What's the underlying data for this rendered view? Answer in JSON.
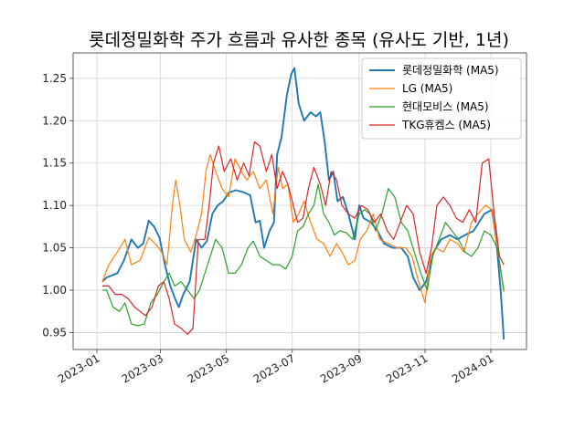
{
  "chart_data": {
    "type": "line",
    "title": "롯데정밀화학 주가 흐름과 유사한 종목 (유사도 기반, 1년)",
    "xlabel": "",
    "ylabel": "",
    "x_range": [
      "2022-12-10",
      "2024-02-03"
    ],
    "ylim": [
      0.93,
      1.28
    ],
    "grid": true,
    "legend_position": "top-right",
    "x_ticks": [
      "2023-01",
      "2023-03",
      "2023-05",
      "2023-07",
      "2023-09",
      "2023-11",
      "2024-01"
    ],
    "y_ticks": [
      "0.95",
      "1.00",
      "1.05",
      "1.10",
      "1.15",
      "1.20",
      "1.25"
    ],
    "series": [
      {
        "name": "롯데정밀화학 (MA5)",
        "color": "#1f77b4",
        "points": [
          [
            "2023-01-06",
            1.01
          ],
          [
            "2023-01-10",
            1.015
          ],
          [
            "2023-01-20",
            1.02
          ],
          [
            "2023-01-26",
            1.035
          ],
          [
            "2023-02-02",
            1.06
          ],
          [
            "2023-02-08",
            1.05
          ],
          [
            "2023-02-13",
            1.055
          ],
          [
            "2023-02-18",
            1.082
          ],
          [
            "2023-02-23",
            1.075
          ],
          [
            "2023-02-28",
            1.062
          ],
          [
            "2023-03-05",
            1.03
          ],
          [
            "2023-03-10",
            1.005
          ],
          [
            "2023-03-15",
            0.988
          ],
          [
            "2023-03-18",
            0.98
          ],
          [
            "2023-03-22",
            0.995
          ],
          [
            "2023-03-28",
            1.01
          ],
          [
            "2023-04-03",
            1.06
          ],
          [
            "2023-04-08",
            1.05
          ],
          [
            "2023-04-13",
            1.058
          ],
          [
            "2023-04-18",
            1.09
          ],
          [
            "2023-04-23",
            1.1
          ],
          [
            "2023-04-28",
            1.105
          ],
          [
            "2023-05-03",
            1.115
          ],
          [
            "2023-05-10",
            1.118
          ],
          [
            "2023-05-18",
            1.115
          ],
          [
            "2023-05-23",
            1.112
          ],
          [
            "2023-05-28",
            1.08
          ],
          [
            "2023-06-01",
            1.082
          ],
          [
            "2023-06-05",
            1.05
          ],
          [
            "2023-06-10",
            1.07
          ],
          [
            "2023-06-14",
            1.08
          ],
          [
            "2023-06-17",
            1.16
          ],
          [
            "2023-06-21",
            1.18
          ],
          [
            "2023-06-26",
            1.23
          ],
          [
            "2023-06-30",
            1.255
          ],
          [
            "2023-07-03",
            1.262
          ],
          [
            "2023-07-07",
            1.22
          ],
          [
            "2023-07-12",
            1.2
          ],
          [
            "2023-07-18",
            1.21
          ],
          [
            "2023-07-23",
            1.205
          ],
          [
            "2023-07-27",
            1.21
          ],
          [
            "2023-07-31",
            1.175
          ],
          [
            "2023-08-04",
            1.13
          ],
          [
            "2023-08-08",
            1.14
          ],
          [
            "2023-08-12",
            1.105
          ],
          [
            "2023-08-17",
            1.11
          ],
          [
            "2023-08-22",
            1.09
          ],
          [
            "2023-08-28",
            1.06
          ],
          [
            "2023-09-01",
            1.1
          ],
          [
            "2023-09-05",
            1.085
          ],
          [
            "2023-09-12",
            1.08
          ],
          [
            "2023-09-18",
            1.07
          ],
          [
            "2023-09-24",
            1.055
          ],
          [
            "2023-10-02",
            1.05
          ],
          [
            "2023-10-10",
            1.05
          ],
          [
            "2023-10-16",
            1.04
          ],
          [
            "2023-10-21",
            1.015
          ],
          [
            "2023-10-27",
            1.0
          ],
          [
            "2023-11-02",
            1.01
          ],
          [
            "2023-11-09",
            1.045
          ],
          [
            "2023-11-16",
            1.06
          ],
          [
            "2023-11-24",
            1.065
          ],
          [
            "2023-12-01",
            1.06
          ],
          [
            "2023-12-08",
            1.065
          ],
          [
            "2023-12-16",
            1.07
          ],
          [
            "2023-12-26",
            1.09
          ],
          [
            "2024-01-02",
            1.095
          ],
          [
            "2024-01-06",
            1.06
          ],
          [
            "2024-01-10",
            1.0
          ],
          [
            "2024-01-13",
            0.942
          ]
        ]
      },
      {
        "name": "LG (MA5)",
        "color": "#ff7f0e",
        "points": [
          [
            "2023-01-06",
            1.01
          ],
          [
            "2023-01-12",
            1.03
          ],
          [
            "2023-01-20",
            1.045
          ],
          [
            "2023-01-27",
            1.06
          ],
          [
            "2023-02-02",
            1.03
          ],
          [
            "2023-02-10",
            1.035
          ],
          [
            "2023-02-18",
            1.062
          ],
          [
            "2023-02-24",
            1.055
          ],
          [
            "2023-03-02",
            1.045
          ],
          [
            "2023-03-07",
            1.03
          ],
          [
            "2023-03-12",
            1.1
          ],
          [
            "2023-03-15",
            1.13
          ],
          [
            "2023-03-19",
            1.1
          ],
          [
            "2023-03-23",
            1.06
          ],
          [
            "2023-03-29",
            1.045
          ],
          [
            "2023-04-03",
            1.065
          ],
          [
            "2023-04-08",
            1.09
          ],
          [
            "2023-04-12",
            1.14
          ],
          [
            "2023-04-16",
            1.16
          ],
          [
            "2023-04-21",
            1.14
          ],
          [
            "2023-04-27",
            1.12
          ],
          [
            "2023-05-03",
            1.11
          ],
          [
            "2023-05-09",
            1.155
          ],
          [
            "2023-05-15",
            1.14
          ],
          [
            "2023-05-20",
            1.13
          ],
          [
            "2023-05-26",
            1.14
          ],
          [
            "2023-06-01",
            1.12
          ],
          [
            "2023-06-07",
            1.13
          ],
          [
            "2023-06-13",
            1.09
          ],
          [
            "2023-06-18",
            1.145
          ],
          [
            "2023-06-22",
            1.12
          ],
          [
            "2023-06-27",
            1.125
          ],
          [
            "2023-07-02",
            1.08
          ],
          [
            "2023-07-07",
            1.09
          ],
          [
            "2023-07-12",
            1.105
          ],
          [
            "2023-07-18",
            1.08
          ],
          [
            "2023-07-24",
            1.06
          ],
          [
            "2023-07-30",
            1.055
          ],
          [
            "2023-08-05",
            1.04
          ],
          [
            "2023-08-11",
            1.055
          ],
          [
            "2023-08-16",
            1.045
          ],
          [
            "2023-08-22",
            1.03
          ],
          [
            "2023-08-28",
            1.035
          ],
          [
            "2023-09-02",
            1.06
          ],
          [
            "2023-09-08",
            1.07
          ],
          [
            "2023-09-14",
            1.09
          ],
          [
            "2023-09-20",
            1.06
          ],
          [
            "2023-09-28",
            1.055
          ],
          [
            "2023-10-06",
            1.05
          ],
          [
            "2023-10-14",
            1.05
          ],
          [
            "2023-10-20",
            1.04
          ],
          [
            "2023-10-26",
            1.01
          ],
          [
            "2023-11-01",
            0.985
          ],
          [
            "2023-11-06",
            1.04
          ],
          [
            "2023-11-11",
            1.05
          ],
          [
            "2023-11-18",
            1.045
          ],
          [
            "2023-11-24",
            1.06
          ],
          [
            "2023-12-01",
            1.055
          ],
          [
            "2023-12-07",
            1.045
          ],
          [
            "2023-12-14",
            1.08
          ],
          [
            "2023-12-20",
            1.09
          ],
          [
            "2023-12-27",
            1.1
          ],
          [
            "2024-01-02",
            1.095
          ],
          [
            "2024-01-08",
            1.04
          ],
          [
            "2024-01-13",
            0.998
          ]
        ]
      },
      {
        "name": "현대모비스 (MA5)",
        "color": "#2ca02c",
        "points": [
          [
            "2023-01-06",
            1.0
          ],
          [
            "2023-01-10",
            1.0
          ],
          [
            "2023-01-16",
            0.98
          ],
          [
            "2023-01-22",
            0.975
          ],
          [
            "2023-01-27",
            0.985
          ],
          [
            "2023-02-02",
            0.96
          ],
          [
            "2023-02-08",
            0.958
          ],
          [
            "2023-02-14",
            0.96
          ],
          [
            "2023-02-20",
            0.985
          ],
          [
            "2023-02-26",
            0.995
          ],
          [
            "2023-03-04",
            1.01
          ],
          [
            "2023-03-09",
            1.02
          ],
          [
            "2023-03-14",
            1.005
          ],
          [
            "2023-03-20",
            1.01
          ],
          [
            "2023-03-26",
            1.0
          ],
          [
            "2023-04-01",
            0.99
          ],
          [
            "2023-04-06",
            1.0
          ],
          [
            "2023-04-11",
            1.02
          ],
          [
            "2023-04-16",
            1.04
          ],
          [
            "2023-04-21",
            1.06
          ],
          [
            "2023-04-27",
            1.05
          ],
          [
            "2023-05-03",
            1.02
          ],
          [
            "2023-05-09",
            1.02
          ],
          [
            "2023-05-15",
            1.03
          ],
          [
            "2023-05-21",
            1.05
          ],
          [
            "2023-05-26",
            1.058
          ],
          [
            "2023-06-01",
            1.04
          ],
          [
            "2023-06-07",
            1.035
          ],
          [
            "2023-06-13",
            1.03
          ],
          [
            "2023-06-19",
            1.03
          ],
          [
            "2023-06-25",
            1.025
          ],
          [
            "2023-07-01",
            1.04
          ],
          [
            "2023-07-06",
            1.07
          ],
          [
            "2023-07-11",
            1.075
          ],
          [
            "2023-07-16",
            1.09
          ],
          [
            "2023-07-21",
            1.1
          ],
          [
            "2023-07-25",
            1.125
          ],
          [
            "2023-07-30",
            1.09
          ],
          [
            "2023-08-04",
            1.08
          ],
          [
            "2023-08-09",
            1.065
          ],
          [
            "2023-08-14",
            1.07
          ],
          [
            "2023-08-20",
            1.068
          ],
          [
            "2023-08-26",
            1.06
          ],
          [
            "2023-09-01",
            1.09
          ],
          [
            "2023-09-06",
            1.095
          ],
          [
            "2023-09-11",
            1.09
          ],
          [
            "2023-09-16",
            1.07
          ],
          [
            "2023-09-22",
            1.09
          ],
          [
            "2023-09-28",
            1.12
          ],
          [
            "2023-10-04",
            1.11
          ],
          [
            "2023-10-10",
            1.08
          ],
          [
            "2023-10-16",
            1.07
          ],
          [
            "2023-10-22",
            1.045
          ],
          [
            "2023-10-28",
            1.02
          ],
          [
            "2023-11-03",
            1.0
          ],
          [
            "2023-11-08",
            1.04
          ],
          [
            "2023-11-14",
            1.06
          ],
          [
            "2023-11-20",
            1.08
          ],
          [
            "2023-11-26",
            1.07
          ],
          [
            "2023-12-02",
            1.06
          ],
          [
            "2023-12-08",
            1.045
          ],
          [
            "2023-12-14",
            1.04
          ],
          [
            "2023-12-20",
            1.05
          ],
          [
            "2023-12-26",
            1.07
          ],
          [
            "2024-01-01",
            1.065
          ],
          [
            "2024-01-07",
            1.05
          ],
          [
            "2024-01-13",
            1.0
          ]
        ]
      },
      {
        "name": "TKG휴켐스 (MA5)",
        "color": "#d62728",
        "points": [
          [
            "2023-01-06",
            1.005
          ],
          [
            "2023-01-12",
            1.005
          ],
          [
            "2023-01-18",
            0.995
          ],
          [
            "2023-01-24",
            0.995
          ],
          [
            "2023-01-30",
            0.99
          ],
          [
            "2023-02-05",
            0.98
          ],
          [
            "2023-02-10",
            0.975
          ],
          [
            "2023-02-15",
            0.97
          ],
          [
            "2023-02-21",
            0.98
          ],
          [
            "2023-02-27",
            1.005
          ],
          [
            "2023-03-04",
            1.01
          ],
          [
            "2023-03-09",
            0.99
          ],
          [
            "2023-03-14",
            0.96
          ],
          [
            "2023-03-20",
            0.955
          ],
          [
            "2023-03-26",
            0.948
          ],
          [
            "2023-03-31",
            0.955
          ],
          [
            "2023-04-05",
            1.06
          ],
          [
            "2023-04-11",
            1.06
          ],
          [
            "2023-04-15",
            1.1
          ],
          [
            "2023-04-19",
            1.15
          ],
          [
            "2023-04-24",
            1.17
          ],
          [
            "2023-04-29",
            1.14
          ],
          [
            "2023-05-05",
            1.155
          ],
          [
            "2023-05-11",
            1.13
          ],
          [
            "2023-05-17",
            1.15
          ],
          [
            "2023-05-22",
            1.135
          ],
          [
            "2023-05-27",
            1.175
          ],
          [
            "2023-06-01",
            1.17
          ],
          [
            "2023-06-07",
            1.14
          ],
          [
            "2023-06-12",
            1.16
          ],
          [
            "2023-06-17",
            1.12
          ],
          [
            "2023-06-22",
            1.14
          ],
          [
            "2023-06-27",
            1.125
          ],
          [
            "2023-07-02",
            1.1
          ],
          [
            "2023-07-06",
            1.08
          ],
          [
            "2023-07-11",
            1.085
          ],
          [
            "2023-07-16",
            1.12
          ],
          [
            "2023-07-21",
            1.145
          ],
          [
            "2023-07-27",
            1.125
          ],
          [
            "2023-08-01",
            1.1
          ],
          [
            "2023-08-06",
            1.14
          ],
          [
            "2023-08-11",
            1.13
          ],
          [
            "2023-08-16",
            1.1
          ],
          [
            "2023-08-22",
            1.09
          ],
          [
            "2023-08-28",
            1.085
          ],
          [
            "2023-09-03",
            1.1
          ],
          [
            "2023-09-09",
            1.095
          ],
          [
            "2023-09-15",
            1.08
          ],
          [
            "2023-09-21",
            1.09
          ],
          [
            "2023-09-27",
            1.07
          ],
          [
            "2023-10-03",
            1.06
          ],
          [
            "2023-10-09",
            1.08
          ],
          [
            "2023-10-15",
            1.1
          ],
          [
            "2023-10-21",
            1.09
          ],
          [
            "2023-10-27",
            1.045
          ],
          [
            "2023-11-02",
            1.02
          ],
          [
            "2023-11-07",
            1.05
          ],
          [
            "2023-11-12",
            1.1
          ],
          [
            "2023-11-18",
            1.11
          ],
          [
            "2023-11-24",
            1.1
          ],
          [
            "2023-11-30",
            1.085
          ],
          [
            "2023-12-06",
            1.08
          ],
          [
            "2023-12-12",
            1.095
          ],
          [
            "2023-12-18",
            1.08
          ],
          [
            "2023-12-24",
            1.15
          ],
          [
            "2023-12-30",
            1.155
          ],
          [
            "2024-01-04",
            1.09
          ],
          [
            "2024-01-09",
            1.04
          ],
          [
            "2024-01-13",
            1.03
          ]
        ]
      }
    ]
  }
}
